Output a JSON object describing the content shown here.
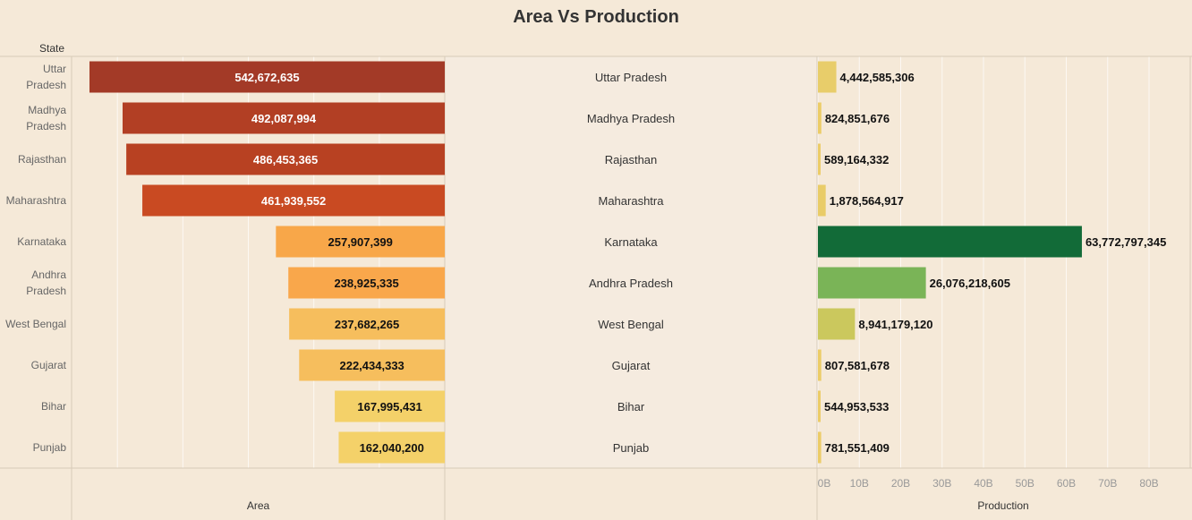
{
  "title": "Area Vs Production",
  "row_header": "State",
  "chart_data": {
    "type": "bar",
    "title": "Area Vs Production",
    "categories": [
      "Uttar Pradesh",
      "Madhya Pradesh",
      "Rajasthan",
      "Maharashtra",
      "Karnataka",
      "Andhra Pradesh",
      "West Bengal",
      "Gujarat",
      "Bihar",
      "Punjab"
    ],
    "row_labels": [
      [
        "Uttar",
        "Pradesh"
      ],
      [
        "Madhya",
        "Pradesh"
      ],
      [
        "Rajasthan"
      ],
      [
        "Maharashtra"
      ],
      [
        "Karnataka"
      ],
      [
        "Andhra",
        "Pradesh"
      ],
      [
        "West Bengal"
      ],
      [
        "Gujarat"
      ],
      [
        "Bihar"
      ],
      [
        "Punjab"
      ]
    ],
    "series": [
      {
        "name": "Area",
        "values": [
          542672635,
          492087994,
          486453365,
          461939552,
          257907399,
          238925335,
          237682265,
          222434333,
          167995431,
          162040200
        ],
        "labels": [
          "542,672,635",
          "492,087,994",
          "486,453,365",
          "461,939,552",
          "257,907,399",
          "238,925,335",
          "237,682,265",
          "222,434,333",
          "167,995,431",
          "162,040,200"
        ],
        "colors": [
          "#a33a27",
          "#b23f24",
          "#b84122",
          "#c94a22",
          "#f8a749",
          "#f9a74b",
          "#f6be5d",
          "#f6be5d",
          "#f4d169",
          "#f4d169"
        ],
        "label_colors": [
          "#ffffff",
          "#ffffff",
          "#ffffff",
          "#ffffff",
          "#111111",
          "#111111",
          "#111111",
          "#111111",
          "#111111",
          "#111111"
        ],
        "axis": "reversed",
        "max": 570000000
      },
      {
        "name": "Production",
        "values": [
          4442585306,
          824851676,
          589164332,
          1878564917,
          63772797345,
          26076218605,
          8941179120,
          807581678,
          544953533,
          781551409
        ],
        "labels": [
          "4,442,585,306",
          "824,851,676",
          "589,164,332",
          "1,878,564,917",
          "63,772,797,345",
          "26,076,218,605",
          "8,941,179,120",
          "807,581,678",
          "544,953,533",
          "781,551,409"
        ],
        "colors": [
          "#e8cd6a",
          "#eccc68",
          "#eccc68",
          "#e9cc68",
          "#126b38",
          "#7ab457",
          "#cbc85d",
          "#eccc68",
          "#eccc68",
          "#eccc68"
        ],
        "ticks": [
          "0B",
          "10B",
          "20B",
          "30B",
          "40B",
          "50B",
          "60B",
          "70B",
          "80B"
        ],
        "tick_values": [
          0,
          10000000000,
          20000000000,
          30000000000,
          40000000000,
          50000000000,
          60000000000,
          70000000000,
          80000000000
        ]
      }
    ],
    "xlabel_left": "Area",
    "xlabel_right": "Production",
    "grid": true
  }
}
